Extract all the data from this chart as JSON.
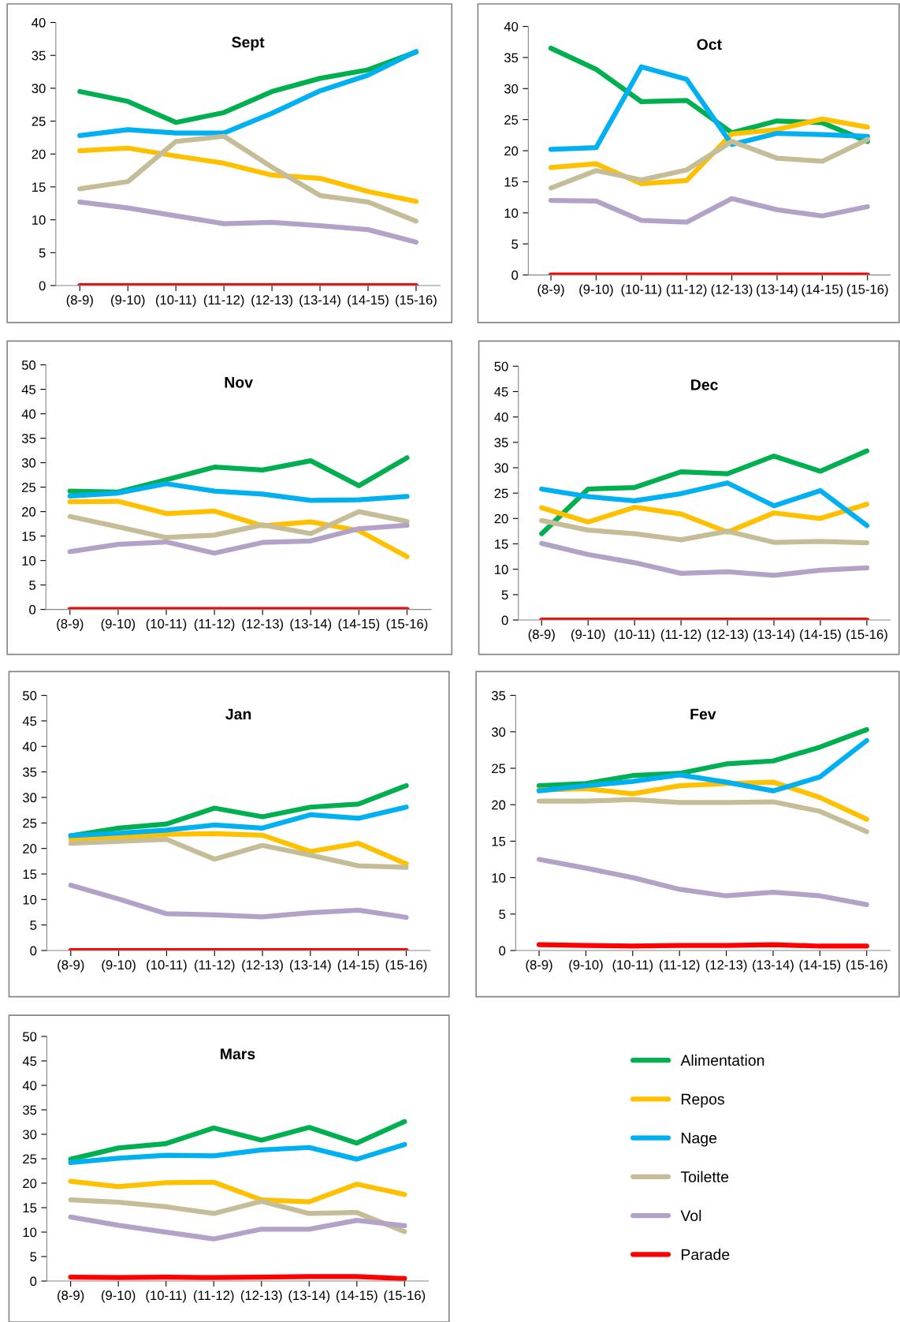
{
  "chart_data": [
    {
      "type": "line",
      "title": "Sept",
      "categories": [
        "(8-9)",
        "(9-10)",
        "(10-11)",
        "(11-12)",
        "(12-13)",
        "(13-14)",
        "(14-15)",
        "(15-16)"
      ],
      "ylim": [
        0,
        40
      ],
      "yticks": [
        0,
        5,
        10,
        15,
        20,
        25,
        30,
        35,
        40
      ],
      "series": [
        {
          "color": "#00b050",
          "values": [
            29.5,
            28,
            24.8,
            26.3,
            29.5,
            31.5,
            32.8,
            35.5
          ]
        },
        {
          "color": "#ffc000",
          "values": [
            20.5,
            20.9,
            19.7,
            18.6,
            16.8,
            16.3,
            14.3,
            12.8
          ]
        },
        {
          "color": "#00b0f0",
          "values": [
            22.8,
            23.7,
            23.2,
            23.2,
            26.2,
            29.6,
            32,
            35.6
          ]
        },
        {
          "color": "#c4bd97",
          "values": [
            14.7,
            15.8,
            21.9,
            22.7,
            18,
            13.7,
            12.7,
            9.8
          ]
        },
        {
          "color": "#b3a2c7",
          "values": [
            12.7,
            11.8,
            10.6,
            9.4,
            9.6,
            9.1,
            8.5,
            6.6
          ]
        },
        {
          "color": "#ff0000",
          "values": [
            0,
            0,
            0,
            0,
            0,
            0,
            0,
            0
          ]
        }
      ]
    },
    {
      "type": "line",
      "title": "Oct",
      "categories": [
        "(8-9)",
        "(9-10)",
        "(10-11)",
        "(11-12)",
        "(12-13)",
        "(13-14)",
        "(14-15)",
        "(15-16)"
      ],
      "ylim": [
        0,
        40
      ],
      "yticks": [
        0,
        5,
        10,
        15,
        20,
        25,
        30,
        35,
        40
      ],
      "series": [
        {
          "color": "#00b050",
          "values": [
            36.5,
            33.1,
            27.9,
            28.1,
            22.9,
            24.8,
            24.5,
            21.5
          ]
        },
        {
          "color": "#ffc000",
          "values": [
            17.3,
            17.9,
            14.7,
            15.2,
            22.7,
            23.4,
            25.1,
            23.8
          ]
        },
        {
          "color": "#00b0f0",
          "values": [
            20.2,
            20.5,
            33.5,
            31.5,
            21,
            22.8,
            22.6,
            22.3
          ]
        },
        {
          "color": "#c4bd97",
          "values": [
            14,
            16.8,
            15.3,
            16.9,
            21.5,
            18.8,
            18.3,
            21.8
          ]
        },
        {
          "color": "#b3a2c7",
          "values": [
            12,
            11.9,
            8.8,
            8.5,
            12.3,
            10.5,
            9.5,
            11
          ]
        },
        {
          "color": "#ff0000",
          "values": [
            0,
            0,
            0,
            0,
            0,
            0,
            0,
            0
          ]
        }
      ]
    },
    {
      "type": "line",
      "title": "Nov",
      "categories": [
        "(8-9)",
        "(9-10)",
        "(10-11)",
        "(11-12)",
        "(12-13)",
        "(13-14)",
        "(14-15)",
        "(15-16)"
      ],
      "ylim": [
        0,
        50
      ],
      "yticks": [
        0,
        5,
        10,
        15,
        20,
        25,
        30,
        35,
        40,
        45,
        50
      ],
      "series": [
        {
          "color": "#00b050",
          "values": [
            24.2,
            24,
            26.5,
            29.1,
            28.5,
            30.4,
            25.3,
            31
          ]
        },
        {
          "color": "#ffc000",
          "values": [
            22,
            22.1,
            19.6,
            20.1,
            17.1,
            17.9,
            16.1,
            10.8
          ]
        },
        {
          "color": "#00b0f0",
          "values": [
            23.2,
            23.8,
            25.7,
            24.2,
            23.6,
            22.3,
            22.4,
            23.1
          ]
        },
        {
          "color": "#c4bd97",
          "values": [
            19,
            16.9,
            14.7,
            15.2,
            17.3,
            15.5,
            20,
            18
          ]
        },
        {
          "color": "#b3a2c7",
          "values": [
            11.8,
            13.3,
            13.8,
            11.5,
            13.7,
            14,
            16.5,
            17.2
          ]
        },
        {
          "color": "#ff0000",
          "values": [
            0,
            0,
            0,
            0,
            0,
            0,
            0,
            0
          ]
        }
      ]
    },
    {
      "type": "line",
      "title": "Dec",
      "categories": [
        "(8-9)",
        "(9-10)",
        "(10-11)",
        "(11-12)",
        "(12-13)",
        "(13-14)",
        "(14-15)",
        "(15-16)"
      ],
      "ylim": [
        0,
        50
      ],
      "yticks": [
        0,
        5,
        10,
        15,
        20,
        25,
        30,
        35,
        40,
        45,
        50
      ],
      "series": [
        {
          "color": "#00b050",
          "values": [
            17,
            25.8,
            26.1,
            29.2,
            28.8,
            32.3,
            29.3,
            33.3
          ]
        },
        {
          "color": "#ffc000",
          "values": [
            22.1,
            19.3,
            22.2,
            20.9,
            17.3,
            21.1,
            20,
            22.8
          ]
        },
        {
          "color": "#00b0f0",
          "values": [
            25.8,
            24.3,
            23.5,
            24.9,
            27,
            22.5,
            25.5,
            18.6
          ]
        },
        {
          "color": "#c4bd97",
          "values": [
            19.6,
            17.7,
            17,
            15.8,
            17.5,
            15.3,
            15.5,
            15.2
          ]
        },
        {
          "color": "#b3a2c7",
          "values": [
            15.1,
            12.9,
            11.3,
            9.2,
            9.5,
            8.8,
            9.8,
            10.3
          ]
        },
        {
          "color": "#ff0000",
          "values": [
            0,
            0,
            0,
            0,
            0,
            0,
            0,
            0
          ]
        }
      ]
    },
    {
      "type": "line",
      "title": "Jan",
      "categories": [
        "(8-9)",
        "(9-10)",
        "(10-11)",
        "(11-12)",
        "(12-13)",
        "(13-14)",
        "(14-15)",
        "(15-16)"
      ],
      "ylim": [
        0,
        50
      ],
      "yticks": [
        0,
        5,
        10,
        15,
        20,
        25,
        30,
        35,
        40,
        45,
        50
      ],
      "series": [
        {
          "color": "#00b050",
          "values": [
            22.5,
            24,
            24.8,
            27.9,
            26.2,
            28.1,
            28.7,
            32.3
          ]
        },
        {
          "color": "#ffc000",
          "values": [
            21.8,
            22.1,
            22.8,
            22.9,
            22.6,
            19.4,
            21,
            17
          ]
        },
        {
          "color": "#00b0f0",
          "values": [
            22.5,
            23,
            23.6,
            24.6,
            24,
            26.6,
            25.9,
            28.1
          ]
        },
        {
          "color": "#c4bd97",
          "values": [
            21,
            21.4,
            21.8,
            17.9,
            20.6,
            18.7,
            16.6,
            16.3
          ]
        },
        {
          "color": "#b3a2c7",
          "values": [
            12.8,
            10.1,
            7.2,
            7,
            6.6,
            7.4,
            7.9,
            6.5
          ]
        },
        {
          "color": "#ff0000",
          "values": [
            0,
            0,
            0,
            0,
            0,
            0,
            0,
            0
          ]
        }
      ]
    },
    {
      "type": "line",
      "title": "Fev",
      "categories": [
        "(8-9)",
        "(9-10)",
        "(10-11)",
        "(11-12)",
        "(12-13)",
        "(13-14)",
        "(14-15)",
        "(15-16)"
      ],
      "ylim": [
        0,
        35
      ],
      "yticks": [
        0,
        5,
        10,
        15,
        20,
        25,
        30,
        35
      ],
      "series": [
        {
          "color": "#00b050",
          "values": [
            22.6,
            22.9,
            24,
            24.3,
            25.6,
            26,
            27.9,
            30.3
          ]
        },
        {
          "color": "#ffc000",
          "values": [
            22,
            22.2,
            21.5,
            22.6,
            22.9,
            23.1,
            21,
            18
          ]
        },
        {
          "color": "#00b0f0",
          "values": [
            21.9,
            22.6,
            23.2,
            24.1,
            23.1,
            21.9,
            23.8,
            28.8
          ]
        },
        {
          "color": "#c4bd97",
          "values": [
            20.5,
            20.5,
            20.7,
            20.3,
            20.3,
            20.4,
            19.1,
            16.3
          ]
        },
        {
          "color": "#b3a2c7",
          "values": [
            12.5,
            11.3,
            10,
            8.4,
            7.5,
            8,
            7.5,
            6.3
          ]
        },
        {
          "color": "#ff0000",
          "values": [
            0.8,
            0.7,
            0.6,
            0.7,
            0.7,
            0.8,
            0.6,
            0.6
          ]
        }
      ]
    },
    {
      "type": "line",
      "title": "Mars",
      "categories": [
        "(8-9)",
        "(9-10)",
        "(10-11)",
        "(11-12)",
        "(12-13)",
        "(13-14)",
        "(14-15)",
        "(15-16)"
      ],
      "ylim": [
        0,
        50
      ],
      "yticks": [
        0,
        5,
        10,
        15,
        20,
        25,
        30,
        35,
        40,
        45,
        50
      ],
      "legend": "right",
      "series": [
        {
          "name": "Alimentation",
          "color": "#00b050",
          "values": [
            24.9,
            27.2,
            28.1,
            31.3,
            28.8,
            31.4,
            28.2,
            32.6
          ]
        },
        {
          "name": "Repos",
          "color": "#ffc000",
          "values": [
            20.4,
            19.3,
            20.1,
            20.2,
            16.6,
            16.2,
            19.8,
            17.7
          ]
        },
        {
          "name": "Nage",
          "color": "#00b0f0",
          "values": [
            24.2,
            25.1,
            25.7,
            25.6,
            26.8,
            27.3,
            24.9,
            27.9
          ]
        },
        {
          "name": "Toilette",
          "color": "#c4bd97",
          "values": [
            16.6,
            16.1,
            15.2,
            13.8,
            16.3,
            13.8,
            14,
            10.1
          ]
        },
        {
          "name": "Vol",
          "color": "#b3a2c7",
          "values": [
            13.1,
            11.4,
            10,
            8.6,
            10.6,
            10.6,
            12.4,
            11.3
          ]
        },
        {
          "name": "Parade",
          "color": "#ff0000",
          "values": [
            0.8,
            0.7,
            0.8,
            0.7,
            0.8,
            0.9,
            0.9,
            0.5
          ]
        }
      ]
    }
  ]
}
